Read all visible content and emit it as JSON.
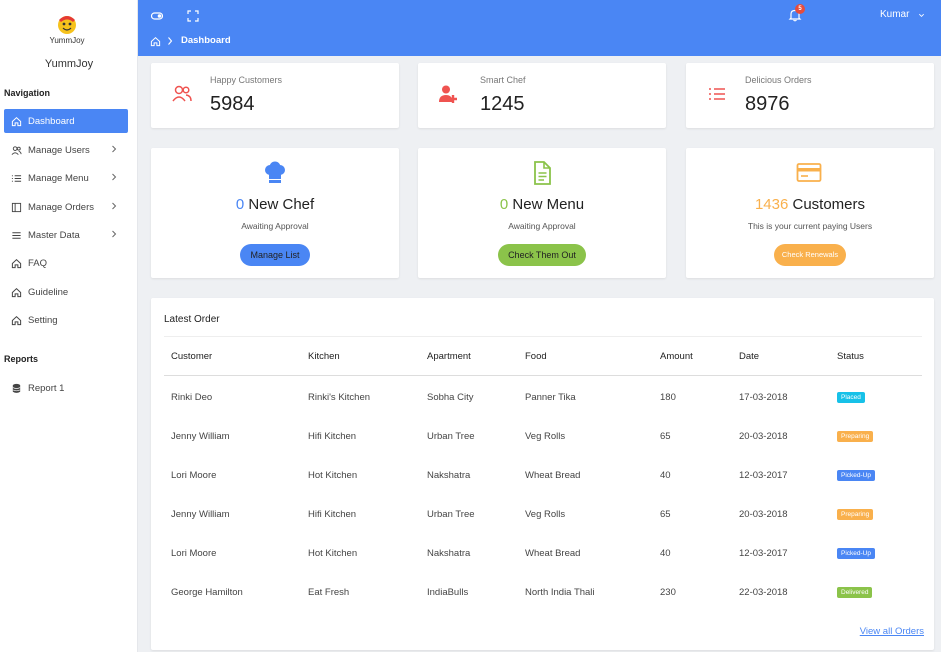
{
  "brand": {
    "logo_text": "YummJoy",
    "name": "YummJoy"
  },
  "sidebar": {
    "nav_heading": "Navigation",
    "items": [
      {
        "label": "Dashboard",
        "icon": "home-icon",
        "active": true,
        "chevron": false
      },
      {
        "label": "Manage Users",
        "icon": "users-icon",
        "active": false,
        "chevron": true
      },
      {
        "label": "Manage Menu",
        "icon": "list-icon",
        "active": false,
        "chevron": true
      },
      {
        "label": "Manage Orders",
        "icon": "columns-icon",
        "active": false,
        "chevron": true
      },
      {
        "label": "Master Data",
        "icon": "menu-icon",
        "active": false,
        "chevron": true
      },
      {
        "label": "FAQ",
        "icon": "home-icon",
        "active": false,
        "chevron": false
      },
      {
        "label": "Guideline",
        "icon": "home-icon",
        "active": false,
        "chevron": false
      },
      {
        "label": "Setting",
        "icon": "home-icon",
        "active": false,
        "chevron": false
      }
    ],
    "reports_heading": "Reports",
    "reports": [
      {
        "label": "Report 1",
        "icon": "database-icon"
      }
    ]
  },
  "header": {
    "notification_count": "5",
    "user_name": "Kumar",
    "breadcrumb": "Dashboard"
  },
  "stats": [
    {
      "label": "Happy Customers",
      "value": "5984",
      "icon": "users-icon"
    },
    {
      "label": "Smart Chef",
      "value": "1245",
      "icon": "user-plus-icon"
    },
    {
      "label": "Delicious Orders",
      "value": "8976",
      "icon": "list-icon"
    }
  ],
  "panels": [
    {
      "count": "0",
      "title": "New Chef",
      "subtitle": "Awaiting Approval",
      "button": "Manage List",
      "icon": "chef-hat-icon",
      "accent": "#4a86f4"
    },
    {
      "count": "0",
      "title": "New Menu",
      "subtitle": "Awaiting Approval",
      "button": "Check Them Out",
      "icon": "document-icon",
      "accent": "#8bc34a"
    },
    {
      "count": "1436",
      "title": "Customers",
      "subtitle": "This is your current paying Users",
      "button": "Check Renewals",
      "icon": "credit-card-icon",
      "accent": "#f9b04c"
    }
  ],
  "orders": {
    "title": "Latest Order",
    "columns": [
      "Customer",
      "Kitchen",
      "Apartment",
      "Food",
      "Amount",
      "Date",
      "Status"
    ],
    "rows": [
      {
        "customer": "Rinki Deo",
        "kitchen": "Rinki's Kitchen",
        "apartment": "Sobha City",
        "food": "Panner Tika",
        "amount": "180",
        "date": "17-03-2018",
        "status": "Placed"
      },
      {
        "customer": "Jenny William",
        "kitchen": "Hifi Kitchen",
        "apartment": "Urban Tree",
        "food": "Veg Rolls",
        "amount": "65",
        "date": "20-03-2018",
        "status": "Preparing"
      },
      {
        "customer": "Lori Moore",
        "kitchen": "Hot Kitchen",
        "apartment": "Nakshatra",
        "food": "Wheat Bread",
        "amount": "40",
        "date": "12-03-2017",
        "status": "Picked-Up"
      },
      {
        "customer": "Jenny William",
        "kitchen": "Hifi Kitchen",
        "apartment": "Urban Tree",
        "food": "Veg Rolls",
        "amount": "65",
        "date": "20-03-2018",
        "status": "Preparing"
      },
      {
        "customer": "Lori Moore",
        "kitchen": "Hot Kitchen",
        "apartment": "Nakshatra",
        "food": "Wheat Bread",
        "amount": "40",
        "date": "12-03-2017",
        "status": "Picked-Up"
      },
      {
        "customer": "George Hamilton",
        "kitchen": "Eat Fresh",
        "apartment": "IndiaBulls",
        "food": "North India Thali",
        "amount": "230",
        "date": "22-03-2018",
        "status": "Delivered"
      }
    ],
    "view_all": "View all Orders"
  },
  "status_colors": {
    "Placed": "#17c1e8",
    "Preparing": "#f9b04c",
    "Picked-Up": "#4a86f4",
    "Delivered": "#8bc34a"
  },
  "colors": {
    "primary": "#4a86f4",
    "danger": "#ef5350",
    "success": "#8bc34a",
    "warning": "#f9b04c"
  }
}
